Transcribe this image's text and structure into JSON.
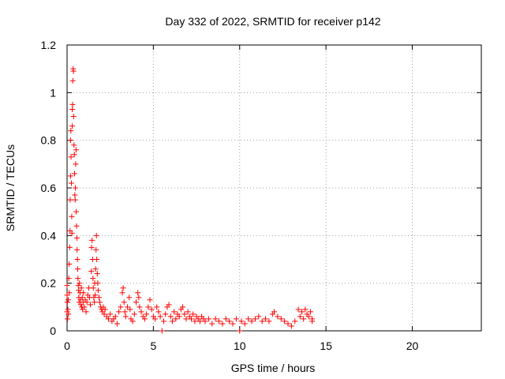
{
  "chart_data": {
    "type": "scatter",
    "title": "Day 332 of 2022, SRMTID for receiver p142",
    "xlabel": "GPS time / hours",
    "ylabel": "SRMTID / TECUs",
    "xlim": [
      0,
      24
    ],
    "ylim": [
      0,
      1.2
    ],
    "xticks": [
      0,
      5,
      10,
      15,
      20
    ],
    "xtick_labels": [
      "0",
      "5",
      "10",
      "15",
      "20"
    ],
    "yticks": [
      0,
      0.2,
      0.4,
      0.6,
      0.8,
      1.0,
      1.2
    ],
    "ytick_labels": [
      "0",
      "0.2",
      "0.4",
      "0.6",
      "0.8",
      "1",
      "1.2"
    ],
    "grid": true,
    "marker": "+",
    "series_color": "#ff0000",
    "series": [
      {
        "name": "SRMTID",
        "points": [
          [
            0.0,
            0.08
          ],
          [
            0.0,
            0.19
          ],
          [
            0.0,
            0.15
          ],
          [
            0.02,
            0.12
          ],
          [
            0.03,
            0.05
          ],
          [
            0.05,
            0.09
          ],
          [
            0.07,
            0.13
          ],
          [
            0.08,
            0.07
          ],
          [
            0.1,
            0.22
          ],
          [
            0.12,
            0.28
          ],
          [
            0.13,
            0.16
          ],
          [
            0.15,
            0.35
          ],
          [
            0.17,
            0.42
          ],
          [
            0.18,
            0.55
          ],
          [
            0.2,
            0.65
          ],
          [
            0.2,
            0.8
          ],
          [
            0.22,
            0.84
          ],
          [
            0.23,
            0.73
          ],
          [
            0.25,
            0.62
          ],
          [
            0.27,
            0.48
          ],
          [
            0.28,
            0.41
          ],
          [
            0.3,
            0.86
          ],
          [
            0.3,
            0.93
          ],
          [
            0.32,
            0.95
          ],
          [
            0.33,
            1.05
          ],
          [
            0.35,
            1.1
          ],
          [
            0.37,
            1.09
          ],
          [
            0.38,
            0.9
          ],
          [
            0.4,
            0.78
          ],
          [
            0.42,
            0.74
          ],
          [
            0.43,
            0.66
          ],
          [
            0.45,
            0.57
          ],
          [
            0.47,
            0.55
          ],
          [
            0.48,
            0.6
          ],
          [
            0.5,
            0.7
          ],
          [
            0.52,
            0.76
          ],
          [
            0.53,
            0.5
          ],
          [
            0.55,
            0.44
          ],
          [
            0.57,
            0.39
          ],
          [
            0.58,
            0.34
          ],
          [
            0.6,
            0.3
          ],
          [
            0.62,
            0.26
          ],
          [
            0.63,
            0.22
          ],
          [
            0.65,
            0.19
          ],
          [
            0.67,
            0.17
          ],
          [
            0.68,
            0.14
          ],
          [
            0.7,
            0.12
          ],
          [
            0.72,
            0.2
          ],
          [
            0.75,
            0.16
          ],
          [
            0.78,
            0.13
          ],
          [
            0.8,
            0.11
          ],
          [
            0.83,
            0.18
          ],
          [
            0.85,
            0.1
          ],
          [
            0.88,
            0.14
          ],
          [
            0.9,
            0.09
          ],
          [
            0.93,
            0.12
          ],
          [
            0.95,
            0.16
          ],
          [
            1.0,
            0.1
          ],
          [
            1.05,
            0.13
          ],
          [
            1.1,
            0.08
          ],
          [
            1.15,
            0.12
          ],
          [
            1.2,
            0.15
          ],
          [
            1.25,
            0.18
          ],
          [
            1.3,
            0.14
          ],
          [
            1.35,
            0.11
          ],
          [
            1.4,
            0.25
          ],
          [
            1.42,
            0.35
          ],
          [
            1.45,
            0.38
          ],
          [
            1.48,
            0.3
          ],
          [
            1.5,
            0.22
          ],
          [
            1.52,
            0.18
          ],
          [
            1.55,
            0.14
          ],
          [
            1.58,
            0.12
          ],
          [
            1.6,
            0.2
          ],
          [
            1.63,
            0.15
          ],
          [
            1.65,
            0.26
          ],
          [
            1.68,
            0.34
          ],
          [
            1.7,
            0.4
          ],
          [
            1.72,
            0.3
          ],
          [
            1.75,
            0.24
          ],
          [
            1.78,
            0.2
          ],
          [
            1.8,
            0.17
          ],
          [
            1.85,
            0.14
          ],
          [
            1.9,
            0.12
          ],
          [
            1.95,
            0.1
          ],
          [
            2.0,
            0.09
          ],
          [
            2.05,
            0.08
          ],
          [
            2.1,
            0.1
          ],
          [
            2.15,
            0.07
          ],
          [
            2.2,
            0.09
          ],
          [
            2.3,
            0.06
          ],
          [
            2.4,
            0.05
          ],
          [
            2.5,
            0.07
          ],
          [
            2.6,
            0.04
          ],
          [
            2.7,
            0.05
          ],
          [
            2.8,
            0.06
          ],
          [
            2.9,
            0.03
          ],
          [
            3.0,
            0.08
          ],
          [
            3.1,
            0.1
          ],
          [
            3.2,
            0.16
          ],
          [
            3.25,
            0.18
          ],
          [
            3.3,
            0.12
          ],
          [
            3.35,
            0.08
          ],
          [
            3.4,
            0.06
          ],
          [
            3.5,
            0.1
          ],
          [
            3.6,
            0.14
          ],
          [
            3.65,
            0.09
          ],
          [
            3.7,
            0.05
          ],
          [
            3.8,
            0.04
          ],
          [
            3.9,
            0.07
          ],
          [
            4.0,
            0.12
          ],
          [
            4.1,
            0.16
          ],
          [
            4.15,
            0.14
          ],
          [
            4.2,
            0.1
          ],
          [
            4.3,
            0.08
          ],
          [
            4.4,
            0.06
          ],
          [
            4.5,
            0.05
          ],
          [
            4.6,
            0.07
          ],
          [
            4.7,
            0.1
          ],
          [
            4.8,
            0.13
          ],
          [
            4.9,
            0.09
          ],
          [
            5.0,
            0.06
          ],
          [
            5.1,
            0.05
          ],
          [
            5.2,
            0.1
          ],
          [
            5.3,
            0.08
          ],
          [
            5.4,
            0.06
          ],
          [
            5.5,
            0.0
          ],
          [
            5.6,
            0.04
          ],
          [
            5.7,
            0.07
          ],
          [
            5.8,
            0.1
          ],
          [
            5.9,
            0.11
          ],
          [
            6.0,
            0.06
          ],
          [
            6.1,
            0.04
          ],
          [
            6.2,
            0.08
          ],
          [
            6.3,
            0.05
          ],
          [
            6.4,
            0.07
          ],
          [
            6.5,
            0.06
          ],
          [
            6.6,
            0.09
          ],
          [
            6.7,
            0.1
          ],
          [
            6.8,
            0.07
          ],
          [
            6.9,
            0.05
          ],
          [
            7.0,
            0.08
          ],
          [
            7.1,
            0.06
          ],
          [
            7.2,
            0.05
          ],
          [
            7.3,
            0.07
          ],
          [
            7.4,
            0.04
          ],
          [
            7.5,
            0.06
          ],
          [
            7.6,
            0.05
          ],
          [
            7.7,
            0.04
          ],
          [
            7.8,
            0.06
          ],
          [
            7.9,
            0.05
          ],
          [
            8.0,
            0.04
          ],
          [
            8.2,
            0.05
          ],
          [
            8.4,
            0.03
          ],
          [
            8.6,
            0.05
          ],
          [
            8.8,
            0.04
          ],
          [
            9.0,
            0.03
          ],
          [
            9.2,
            0.05
          ],
          [
            9.4,
            0.04
          ],
          [
            9.6,
            0.03
          ],
          [
            9.8,
            0.05
          ],
          [
            10.0,
            0.0
          ],
          [
            10.1,
            0.04
          ],
          [
            10.3,
            0.03
          ],
          [
            10.5,
            0.05
          ],
          [
            10.7,
            0.04
          ],
          [
            10.9,
            0.05
          ],
          [
            11.1,
            0.06
          ],
          [
            11.3,
            0.04
          ],
          [
            11.5,
            0.05
          ],
          [
            11.7,
            0.04
          ],
          [
            11.9,
            0.07
          ],
          [
            12.0,
            0.08
          ],
          [
            12.2,
            0.06
          ],
          [
            12.4,
            0.05
          ],
          [
            12.6,
            0.04
          ],
          [
            12.8,
            0.03
          ],
          [
            13.0,
            0.02
          ],
          [
            13.2,
            0.04
          ],
          [
            13.4,
            0.09
          ],
          [
            13.5,
            0.06
          ],
          [
            13.6,
            0.08
          ],
          [
            13.7,
            0.05
          ],
          [
            13.8,
            0.09
          ],
          [
            13.9,
            0.07
          ],
          [
            14.0,
            0.06
          ],
          [
            14.1,
            0.08
          ],
          [
            14.2,
            0.05
          ],
          [
            14.2,
            0.04
          ]
        ]
      }
    ]
  }
}
